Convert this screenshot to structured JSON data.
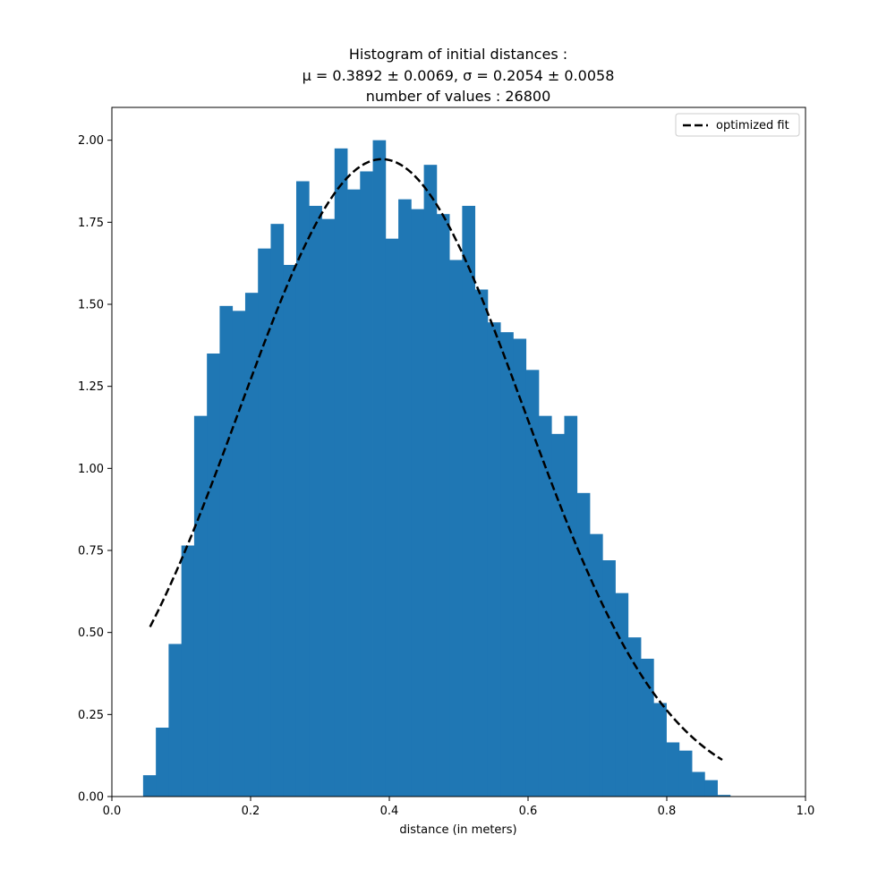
{
  "chart_data": {
    "type": "bar",
    "title_lines": [
      "Histogram of initial distances :",
      "μ = 0.3892 ± 0.0069, σ = 0.2054 ± 0.0058",
      "number of values :   26800"
    ],
    "xlabel": "distance (in meters)",
    "ylabel": "",
    "xlim": [
      0.0,
      1.0
    ],
    "ylim": [
      0.0,
      2.1
    ],
    "x_ticks": [
      "0.0",
      "0.2",
      "0.4",
      "0.6",
      "0.8",
      "1.0"
    ],
    "y_ticks": [
      "0.00",
      "0.25",
      "0.50",
      "0.75",
      "1.00",
      "1.25",
      "1.50",
      "1.75",
      "2.00"
    ],
    "grid": false,
    "legend_position": "top-right",
    "bar_color": "#1f77b4",
    "bin_edges": [
      0.045,
      0.0634,
      0.0818,
      0.1002,
      0.1186,
      0.137,
      0.1554,
      0.1738,
      0.1922,
      0.2106,
      0.229,
      0.2474,
      0.2658,
      0.2842,
      0.3026,
      0.321,
      0.3394,
      0.3578,
      0.3762,
      0.3946,
      0.413,
      0.4314,
      0.4498,
      0.4682,
      0.4866,
      0.505,
      0.5234,
      0.5418,
      0.5602,
      0.5786,
      0.597,
      0.6154,
      0.6338,
      0.6522,
      0.6706,
      0.689,
      0.7074,
      0.7258,
      0.7442,
      0.7626,
      0.781,
      0.7994,
      0.8178,
      0.8362,
      0.8546,
      0.873,
      0.8914
    ],
    "bin_values": [
      0.065,
      0.21,
      0.465,
      0.765,
      1.16,
      1.35,
      1.495,
      1.48,
      1.535,
      1.67,
      1.745,
      1.62,
      1.875,
      1.8,
      1.76,
      1.975,
      1.85,
      1.905,
      2.0,
      1.7,
      1.82,
      1.79,
      1.925,
      1.775,
      1.635,
      1.8,
      1.545,
      1.445,
      1.415,
      1.395,
      1.3,
      1.16,
      1.105,
      1.16,
      0.925,
      0.8,
      0.72,
      0.62,
      0.485,
      0.42,
      0.285,
      0.165,
      0.14,
      0.075,
      0.05,
      0.005
    ],
    "series": [
      {
        "name": "optimized fit",
        "type": "line",
        "style": "dashed",
        "color": "#000000",
        "mu": 0.3892,
        "sigma": 0.2054,
        "x_range": [
          0.055,
          0.88
        ]
      }
    ]
  }
}
